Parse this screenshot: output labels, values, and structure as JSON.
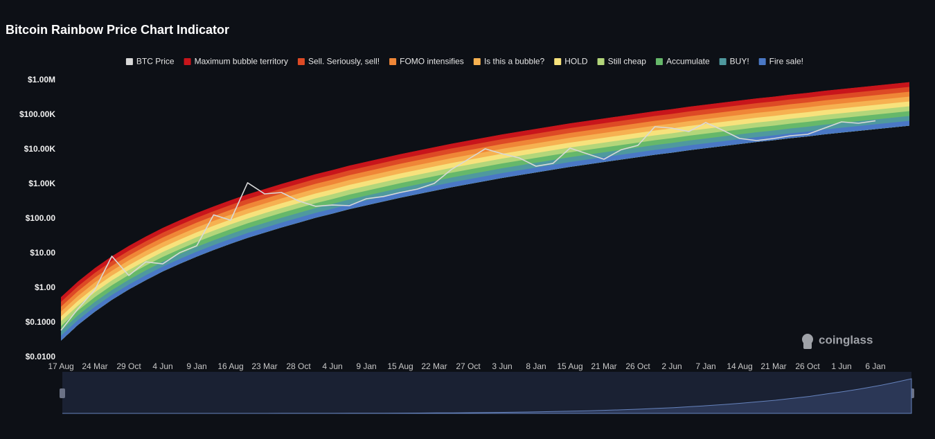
{
  "chart_data": {
    "type": "rainbow",
    "title": "Bitcoin Rainbow Price Chart Indicator",
    "watermark": "coinglass",
    "log_y": true,
    "grid": false,
    "legend_position": "top",
    "ylim": [
      0.01,
      1000000
    ],
    "yticks": [
      {
        "value": 0.01,
        "label": "$0.0100"
      },
      {
        "value": 0.1,
        "label": "$0.1000"
      },
      {
        "value": 1,
        "label": "$1.00"
      },
      {
        "value": 10,
        "label": "$10.00"
      },
      {
        "value": 100,
        "label": "$100.00"
      },
      {
        "value": 1000,
        "label": "$1.00K"
      },
      {
        "value": 10000,
        "label": "$10.00K"
      },
      {
        "value": 100000,
        "label": "$100.00K"
      },
      {
        "value": 1000000,
        "label": "$1.00M"
      }
    ],
    "categories": [
      "17 Aug",
      null,
      "24 Mar",
      null,
      "29 Oct",
      null,
      "4 Jun",
      null,
      "9 Jan",
      null,
      "16 Aug",
      null,
      "23 Mar",
      null,
      "28 Oct",
      null,
      "4 Jun",
      null,
      "9 Jan",
      null,
      "15 Aug",
      null,
      "22 Mar",
      null,
      "27 Oct",
      null,
      "3 Jun",
      null,
      "8 Jan",
      null,
      "15 Aug",
      null,
      "21 Mar",
      null,
      "26 Oct",
      null,
      "2 Jun",
      null,
      "7 Jan",
      null,
      "14 Aug",
      null,
      "21 Mar",
      null,
      "26 Oct",
      null,
      "1 Jun",
      null,
      "6 Jan",
      null,
      null
    ],
    "series": [
      {
        "name": "BTC Price",
        "color": "#d9d9d9",
        "values": [
          0.06,
          0.25,
          0.9,
          8.3,
          2.3,
          5.7,
          5,
          10.5,
          16.6,
          130,
          91,
          1100,
          525,
          575,
          330,
          230,
          250,
          240,
          380,
          440,
          575,
          720,
          1050,
          2630,
          5250,
          10500,
          7600,
          5750,
          3300,
          4000,
          11000,
          7600,
          5250,
          9800,
          13200,
          45700,
          41700,
          33100,
          60300,
          36300,
          20900,
          18200,
          20900,
          25100,
          27500,
          41700,
          63100,
          57500,
          68000,
          null,
          null
        ]
      },
      {
        "name": "Maximum bubble territory",
        "color": "#c8151b",
        "values": [
          0.55,
          1.55,
          3.8,
          8.32,
          16.6,
          30.9,
          55.0,
          91.2,
          148,
          229,
          347,
          513,
          724,
          1023,
          1413,
          1950,
          2570,
          3467,
          4467,
          5754,
          7413,
          9333,
          11750,
          14790,
          18200,
          22390,
          27540,
          33110,
          39810,
          47860,
          57540,
          67610,
          79430,
          93330,
          109600,
          128800,
          147900,
          173800,
          199500,
          229100,
          263000,
          302000,
          338800,
          389000,
          436500,
          501200,
          562300,
          631000,
          707900,
          794300,
          891300
        ]
      },
      {
        "name": "Sell. Seriously, sell!",
        "color": "#dd4a25",
        "values": [
          0.398,
          1.12,
          2.75,
          6.03,
          12.0,
          22.4,
          39.8,
          66.1,
          107,
          166,
          251,
          372,
          525,
          741,
          1023,
          1413,
          1862,
          2512,
          3236,
          4169,
          5370,
          6761,
          8511,
          10720,
          13180,
          16220,
          19950,
          23990,
          28840,
          34670,
          41690,
          48980,
          57540,
          67610,
          79430,
          93330,
          107200,
          125900,
          144500,
          166000,
          190500,
          218800,
          245500,
          281800,
          316200,
          363100,
          407400,
          457100,
          512900,
          575400,
          645700
        ]
      },
      {
        "name": "FOMO intensifies",
        "color": "#ef8637",
        "values": [
          0.288,
          0.813,
          2.0,
          4.37,
          8.71,
          16.2,
          28.8,
          47.9,
          77.6,
          120,
          182,
          269,
          380,
          537,
          741,
          1023,
          1349,
          1820,
          2344,
          3020,
          3890,
          4898,
          6166,
          7762,
          9550,
          11750,
          14450,
          17380,
          20890,
          25120,
          30200,
          35480,
          41690,
          48980,
          57540,
          67610,
          77620,
          91200,
          104700,
          120200,
          138000,
          158500,
          177800,
          204200,
          229100,
          263000,
          295100,
          331100,
          371500,
          416900,
          467700
        ]
      },
      {
        "name": "Is this a bubble?",
        "color": "#f6b151",
        "values": [
          0.209,
          0.589,
          1.45,
          3.16,
          6.31,
          11.8,
          20.9,
          34.7,
          56.2,
          87.1,
          132,
          195,
          275,
          389,
          537,
          741,
          977,
          1318,
          1698,
          2188,
          2818,
          3548,
          4467,
          5623,
          6918,
          8511,
          10470,
          12590,
          15140,
          18200,
          21880,
          25700,
          30200,
          35480,
          41690,
          48980,
          56230,
          66070,
          75860,
          87100,
          100000,
          114800,
          128800,
          147900,
          166000,
          190500,
          213800,
          239900,
          269200,
          302000,
          338800
        ]
      },
      {
        "name": "HOLD",
        "color": "#f7e27c",
        "values": [
          0.151,
          0.427,
          1.05,
          2.29,
          4.57,
          8.51,
          15.1,
          25.1,
          40.7,
          63.1,
          95.5,
          141,
          200,
          282,
          389,
          537,
          708,
          955,
          1230,
          1585,
          2042,
          2570,
          3236,
          4074,
          5012,
          6166,
          7586,
          9120,
          10960,
          13180,
          15850,
          18620,
          21880,
          25700,
          30200,
          35480,
          40740,
          47860,
          54950,
          63100,
          72440,
          83180,
          93330,
          107200,
          120200,
          138000,
          154900,
          173800,
          195000,
          218800,
          245500
        ]
      },
      {
        "name": "Still cheap",
        "color": "#b3d67a",
        "values": [
          0.11,
          0.309,
          0.759,
          1.66,
          3.31,
          6.17,
          11.0,
          18.2,
          29.5,
          45.7,
          69.2,
          102,
          145,
          204,
          282,
          389,
          513,
          692,
          891,
          1148,
          1479,
          1862,
          2344,
          2951,
          3631,
          4467,
          5495,
          6607,
          7943,
          9550,
          11480,
          13490,
          15850,
          18620,
          21880,
          25700,
          29510,
          34670,
          39810,
          45710,
          52480,
          60260,
          67610,
          77620,
          87100,
          100000,
          112200,
          125900,
          141300,
          158500,
          177800
        ]
      },
      {
        "name": "Accumulate",
        "color": "#66b86a",
        "values": [
          0.0794,
          0.224,
          0.55,
          1.2,
          2.4,
          4.47,
          7.94,
          13.2,
          21.4,
          33.1,
          50.1,
          74.1,
          105,
          148,
          204,
          282,
          372,
          501,
          646,
          832,
          1072,
          1349,
          1698,
          2138,
          2630,
          3236,
          3981,
          4786,
          5754,
          6918,
          8318,
          9772,
          11480,
          13490,
          15850,
          18620,
          21380,
          25120,
          28840,
          33110,
          38020,
          43650,
          48980,
          56230,
          63100,
          72440,
          81280,
          91200,
          102300,
          114800,
          128800
        ]
      },
      {
        "name": "BUY!",
        "color": "#4f999e",
        "values": [
          0.0575,
          0.162,
          0.398,
          0.871,
          1.74,
          3.24,
          5.75,
          9.55,
          15.5,
          24.0,
          36.3,
          53.7,
          75.9,
          107,
          148,
          204,
          269,
          363,
          468,
          603,
          776,
          977,
          1230,
          1549,
          1905,
          2344,
          2884,
          3467,
          4169,
          5012,
          6026,
          7079,
          8318,
          9772,
          11480,
          13490,
          15490,
          18200,
          20890,
          23990,
          27540,
          31620,
          35480,
          40740,
          45710,
          52480,
          58880,
          66070,
          74130,
          83180,
          93330
        ]
      },
      {
        "name": "Fire sale!",
        "color": "#4a78c5",
        "values": [
          0.0417,
          0.118,
          0.288,
          0.631,
          1.26,
          2.34,
          4.17,
          6.92,
          11.2,
          17.4,
          26.3,
          38.9,
          55.0,
          77.6,
          107,
          148,
          195,
          263,
          339,
          437,
          562,
          708,
          891,
          1122,
          1380,
          1698,
          2089,
          2512,
          3020,
          3631,
          4365,
          5129,
          6026,
          7079,
          8318,
          9772,
          11220,
          13180,
          15140,
          17380,
          19950,
          22910,
          25700,
          29510,
          33110,
          38020,
          42660,
          47860,
          53700,
          60260,
          67610
        ]
      }
    ]
  }
}
